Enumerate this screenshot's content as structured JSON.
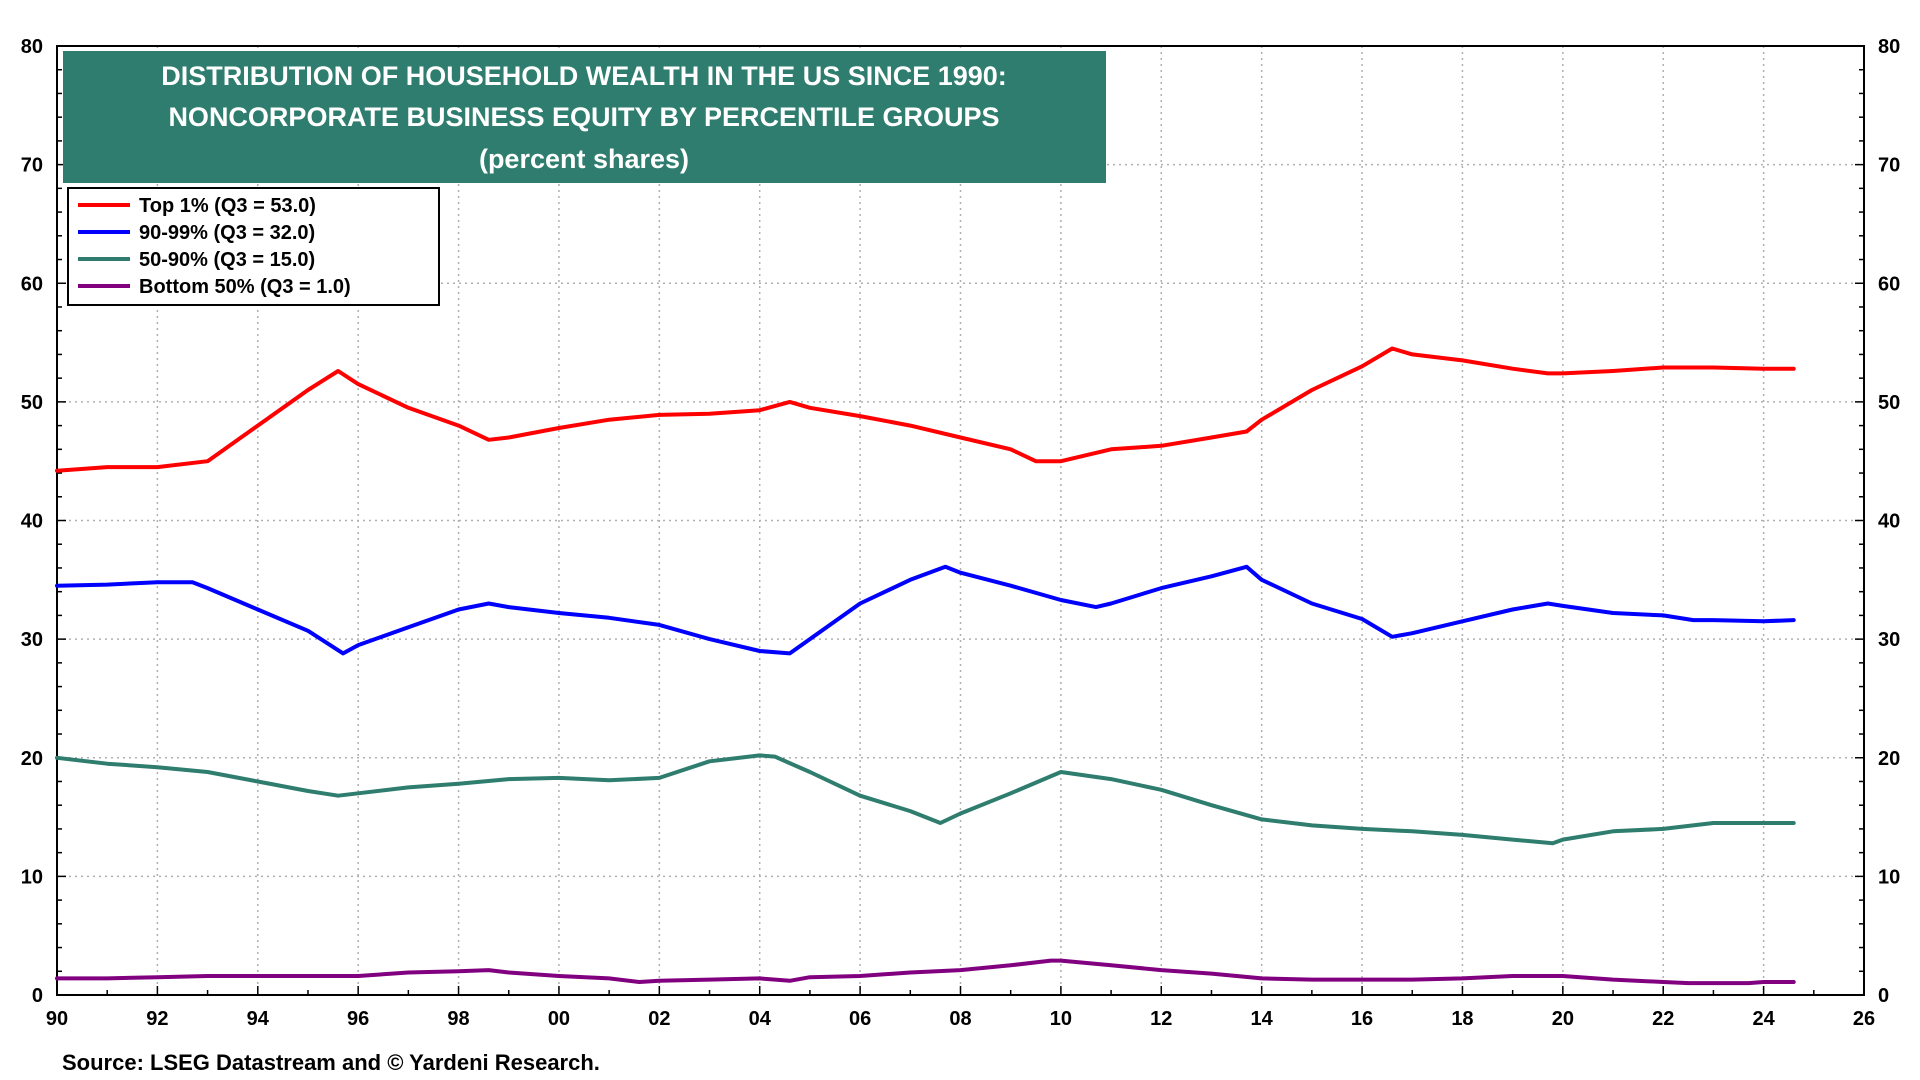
{
  "chart_data": {
    "type": "line",
    "title": [
      "DISTRIBUTION OF HOUSEHOLD WEALTH IN THE US SINCE 1990:",
      "NONCORPORATE BUSINESS EQUITY BY PERCENTILE GROUPS",
      "(percent shares)"
    ],
    "xlim": [
      1990,
      2026
    ],
    "ylim": [
      0,
      80
    ],
    "x_ticks": [
      1990,
      1992,
      1994,
      1996,
      1998,
      2000,
      2002,
      2004,
      2006,
      2008,
      2010,
      2012,
      2014,
      2016,
      2018,
      2020,
      2022,
      2024,
      2026
    ],
    "x_tick_labels": [
      "90",
      "92",
      "94",
      "96",
      "98",
      "00",
      "02",
      "04",
      "06",
      "08",
      "10",
      "12",
      "14",
      "16",
      "18",
      "20",
      "22",
      "24",
      "26"
    ],
    "y_ticks": [
      0,
      10,
      20,
      30,
      40,
      50,
      60,
      70,
      80
    ],
    "y_tick_labels": [
      "0",
      "10",
      "20",
      "30",
      "40",
      "50",
      "60",
      "70",
      "80"
    ],
    "grid": true,
    "legend_position": "top-left",
    "series": [
      {
        "name": "Top 1% (Q3 = 53.0)",
        "color": "#ff0000",
        "points": [
          [
            1990,
            44.2
          ],
          [
            1991,
            44.5
          ],
          [
            1992,
            44.5
          ],
          [
            1993,
            45
          ],
          [
            1994,
            48
          ],
          [
            1995,
            51
          ],
          [
            1995.6,
            52.6
          ],
          [
            1996,
            51.5
          ],
          [
            1997,
            49.5
          ],
          [
            1998,
            48
          ],
          [
            1998.6,
            46.8
          ],
          [
            1999,
            47
          ],
          [
            2000,
            47.8
          ],
          [
            2001,
            48.5
          ],
          [
            2002,
            48.9
          ],
          [
            2003,
            49
          ],
          [
            2004,
            49.3
          ],
          [
            2004.6,
            50
          ],
          [
            2005,
            49.5
          ],
          [
            2006,
            48.8
          ],
          [
            2007,
            48
          ],
          [
            2008,
            47
          ],
          [
            2009,
            46
          ],
          [
            2009.5,
            45
          ],
          [
            2010,
            45
          ],
          [
            2011,
            46
          ],
          [
            2012,
            46.3
          ],
          [
            2013,
            47
          ],
          [
            2013.7,
            47.5
          ],
          [
            2014,
            48.5
          ],
          [
            2015,
            51
          ],
          [
            2016,
            53
          ],
          [
            2016.6,
            54.5
          ],
          [
            2017,
            54
          ],
          [
            2018,
            53.5
          ],
          [
            2019,
            52.8
          ],
          [
            2019.7,
            52.4
          ],
          [
            2020,
            52.4
          ],
          [
            2021,
            52.6
          ],
          [
            2022,
            52.9
          ],
          [
            2023,
            52.9
          ],
          [
            2024,
            52.8
          ],
          [
            2024.6,
            52.8
          ]
        ]
      },
      {
        "name": "90-99% (Q3 = 32.0)",
        "color": "#0000ff",
        "points": [
          [
            1990,
            34.5
          ],
          [
            1991,
            34.6
          ],
          [
            1992,
            34.8
          ],
          [
            1992.7,
            34.8
          ],
          [
            1993,
            34.3
          ],
          [
            1994,
            32.5
          ],
          [
            1995,
            30.7
          ],
          [
            1995.7,
            28.8
          ],
          [
            1996,
            29.5
          ],
          [
            1997,
            31
          ],
          [
            1998,
            32.5
          ],
          [
            1998.6,
            33
          ],
          [
            1999,
            32.7
          ],
          [
            2000,
            32.2
          ],
          [
            2001,
            31.8
          ],
          [
            2002,
            31.2
          ],
          [
            2003,
            30
          ],
          [
            2004,
            29
          ],
          [
            2004.6,
            28.8
          ],
          [
            2005,
            30
          ],
          [
            2006,
            33
          ],
          [
            2007,
            35
          ],
          [
            2007.7,
            36.1
          ],
          [
            2008,
            35.6
          ],
          [
            2009,
            34.5
          ],
          [
            2010,
            33.3
          ],
          [
            2010.7,
            32.7
          ],
          [
            2011,
            33
          ],
          [
            2012,
            34.3
          ],
          [
            2013,
            35.3
          ],
          [
            2013.7,
            36.1
          ],
          [
            2014,
            35
          ],
          [
            2015,
            33
          ],
          [
            2016,
            31.7
          ],
          [
            2016.6,
            30.2
          ],
          [
            2017,
            30.5
          ],
          [
            2018,
            31.5
          ],
          [
            2019,
            32.5
          ],
          [
            2019.7,
            33
          ],
          [
            2020,
            32.8
          ],
          [
            2021,
            32.2
          ],
          [
            2022,
            32
          ],
          [
            2022.6,
            31.6
          ],
          [
            2023,
            31.6
          ],
          [
            2024,
            31.5
          ],
          [
            2024.6,
            31.6
          ]
        ]
      },
      {
        "name": "50-90% (Q3 = 15.0)",
        "color": "#2e7d6e",
        "points": [
          [
            1990,
            20
          ],
          [
            1991,
            19.5
          ],
          [
            1992,
            19.2
          ],
          [
            1993,
            18.8
          ],
          [
            1994,
            18
          ],
          [
            1995,
            17.2
          ],
          [
            1995.6,
            16.8
          ],
          [
            1996,
            17
          ],
          [
            1997,
            17.5
          ],
          [
            1998,
            17.8
          ],
          [
            1999,
            18.2
          ],
          [
            2000,
            18.3
          ],
          [
            2001,
            18.1
          ],
          [
            2002,
            18.3
          ],
          [
            2003,
            19.7
          ],
          [
            2004,
            20.2
          ],
          [
            2004.3,
            20.1
          ],
          [
            2005,
            18.8
          ],
          [
            2006,
            16.8
          ],
          [
            2007,
            15.5
          ],
          [
            2007.6,
            14.5
          ],
          [
            2008,
            15.3
          ],
          [
            2009,
            17
          ],
          [
            2010,
            18.8
          ],
          [
            2011,
            18.2
          ],
          [
            2012,
            17.3
          ],
          [
            2013,
            16
          ],
          [
            2014,
            14.8
          ],
          [
            2015,
            14.3
          ],
          [
            2016,
            14
          ],
          [
            2017,
            13.8
          ],
          [
            2018,
            13.5
          ],
          [
            2019,
            13.1
          ],
          [
            2019.8,
            12.8
          ],
          [
            2020,
            13.1
          ],
          [
            2021,
            13.8
          ],
          [
            2022,
            14
          ],
          [
            2023,
            14.5
          ],
          [
            2024,
            14.5
          ],
          [
            2024.6,
            14.5
          ]
        ]
      },
      {
        "name": "Bottom 50% (Q3 = 1.0)",
        "color": "#800080",
        "points": [
          [
            1990,
            1.4
          ],
          [
            1991,
            1.4
          ],
          [
            1992,
            1.5
          ],
          [
            1993,
            1.6
          ],
          [
            1994,
            1.6
          ],
          [
            1995,
            1.6
          ],
          [
            1996,
            1.6
          ],
          [
            1997,
            1.9
          ],
          [
            1998,
            2
          ],
          [
            1998.6,
            2.1
          ],
          [
            1999,
            1.9
          ],
          [
            2000,
            1.6
          ],
          [
            2001,
            1.4
          ],
          [
            2001.6,
            1.1
          ],
          [
            2002,
            1.2
          ],
          [
            2003,
            1.3
          ],
          [
            2004,
            1.4
          ],
          [
            2004.6,
            1.2
          ],
          [
            2005,
            1.5
          ],
          [
            2006,
            1.6
          ],
          [
            2007,
            1.9
          ],
          [
            2008,
            2.1
          ],
          [
            2009,
            2.5
          ],
          [
            2009.8,
            2.9
          ],
          [
            2010,
            2.9
          ],
          [
            2011,
            2.5
          ],
          [
            2012,
            2.1
          ],
          [
            2013,
            1.8
          ],
          [
            2014,
            1.4
          ],
          [
            2015,
            1.3
          ],
          [
            2016,
            1.3
          ],
          [
            2017,
            1.3
          ],
          [
            2018,
            1.4
          ],
          [
            2019,
            1.6
          ],
          [
            2020,
            1.6
          ],
          [
            2021,
            1.3
          ],
          [
            2022,
            1.1
          ],
          [
            2022.5,
            1
          ],
          [
            2023,
            1
          ],
          [
            2023.7,
            1
          ],
          [
            2024,
            1.1
          ],
          [
            2024.6,
            1.1
          ]
        ]
      }
    ],
    "source": "Source: LSEG Datastream and © Yardeni Research.",
    "title_box_color": "#2e7d6e"
  }
}
